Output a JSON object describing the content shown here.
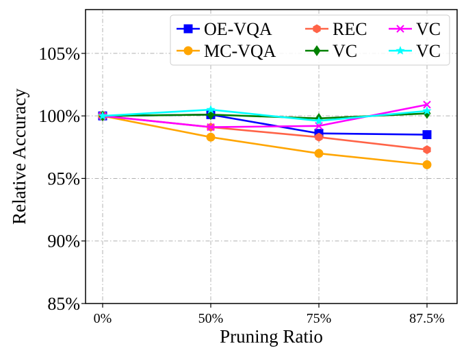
{
  "chart_data": {
    "type": "line",
    "title": "",
    "xlabel": "Pruning Ratio",
    "ylabel": "Relative Accuracy",
    "categories": [
      "0%",
      "50%",
      "75%",
      "87.5%"
    ],
    "ylim": [
      85,
      108.5
    ],
    "yticks": [
      85,
      90,
      95,
      100,
      105
    ],
    "ytick_labels": [
      "85%",
      "90%",
      "95%",
      "100%",
      "105%"
    ],
    "grid": true,
    "legend_position": "top-right",
    "series": [
      {
        "name": "OE-VQA",
        "color": "#0000ff",
        "marker": "square",
        "values": [
          100,
          100.1,
          98.6,
          98.5
        ]
      },
      {
        "name": "MC-VQA",
        "color": "#ffa500",
        "marker": "circle",
        "values": [
          100,
          98.3,
          97.0,
          96.1
        ]
      },
      {
        "name": "REC",
        "color": "#ff6347",
        "marker": "hexagon",
        "values": [
          100,
          99.1,
          98.3,
          97.3
        ]
      },
      {
        "name": "VC",
        "color": "#008000",
        "marker": "diamond",
        "values": [
          100,
          100.1,
          99.8,
          100.2
        ]
      },
      {
        "name": "VC",
        "color": "#ff00ff",
        "marker": "x",
        "values": [
          100,
          99.1,
          99.2,
          100.9
        ]
      },
      {
        "name": "VC",
        "color": "#00ffff",
        "marker": "star",
        "values": [
          100,
          100.5,
          99.6,
          100.4
        ]
      }
    ]
  }
}
